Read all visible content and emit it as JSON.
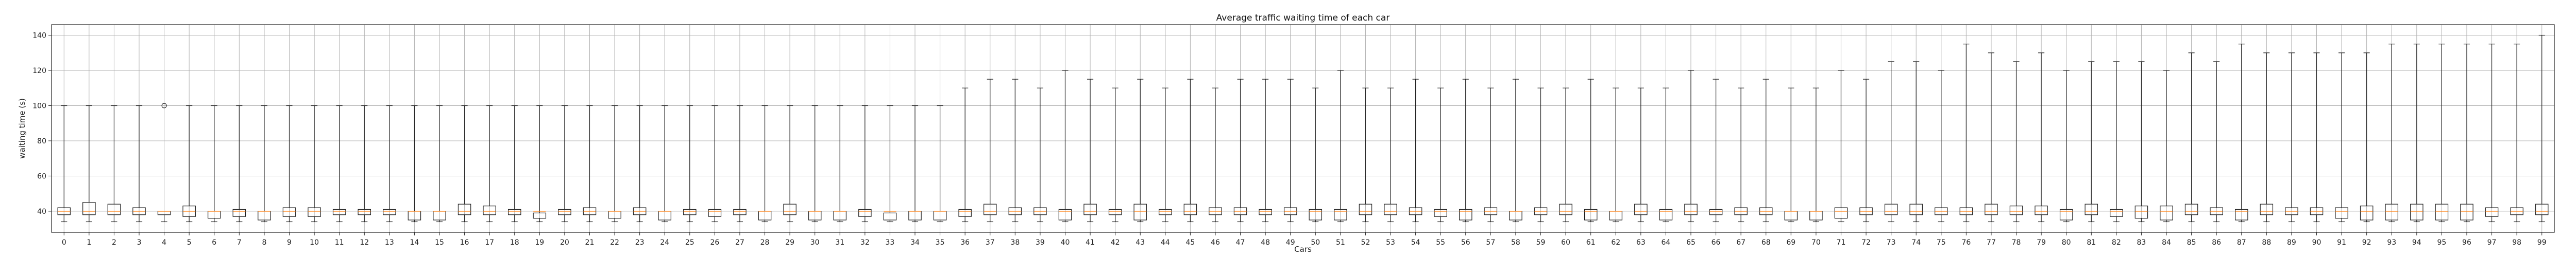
{
  "chart_data": {
    "type": "box",
    "title": "Average traffic waiting time of each car",
    "xlabel": "Cars",
    "ylabel": "waiting time (s)",
    "ylim": [
      28,
      146
    ],
    "yticks": [
      40,
      60,
      80,
      100,
      120,
      140
    ],
    "grid": true,
    "colors": {
      "box": "#1f1f1f",
      "median": "#ff7f0e",
      "grid": "#b0b0b0",
      "flier": "#1f1f1f"
    },
    "categories": [
      "0",
      "1",
      "2",
      "3",
      "4",
      "5",
      "6",
      "7",
      "8",
      "9",
      "10",
      "11",
      "12",
      "13",
      "14",
      "15",
      "16",
      "17",
      "18",
      "19",
      "20",
      "21",
      "22",
      "23",
      "24",
      "25",
      "26",
      "27",
      "28",
      "29",
      "30",
      "31",
      "32",
      "33",
      "34",
      "35",
      "36",
      "37",
      "38",
      "39",
      "40",
      "41",
      "42",
      "43",
      "44",
      "45",
      "46",
      "47",
      "48",
      "49",
      "50",
      "51",
      "52",
      "53",
      "54",
      "55",
      "56",
      "57",
      "58",
      "59",
      "60",
      "61",
      "62",
      "63",
      "64",
      "65",
      "66",
      "67",
      "68",
      "69",
      "70",
      "71",
      "72",
      "73",
      "74",
      "75",
      "76",
      "77",
      "78",
      "79",
      "80",
      "81",
      "82",
      "83",
      "84",
      "85",
      "86",
      "87",
      "88",
      "89",
      "90",
      "91",
      "92",
      "93",
      "94",
      "95",
      "96",
      "97",
      "98",
      "99"
    ],
    "whisker_high": [
      100,
      100,
      100,
      100,
      null,
      100,
      100,
      100,
      100,
      100,
      100,
      100,
      100,
      100,
      100,
      100,
      100,
      100,
      100,
      100,
      100,
      100,
      100,
      100,
      100,
      100,
      100,
      100,
      100,
      100,
      100,
      100,
      100,
      100,
      100,
      100,
      110,
      115,
      115,
      110,
      120,
      115,
      110,
      115,
      110,
      115,
      110,
      115,
      115,
      115,
      110,
      120,
      110,
      110,
      115,
      110,
      115,
      110,
      115,
      110,
      110,
      115,
      110,
      110,
      110,
      120,
      115,
      110,
      115,
      110,
      110,
      120,
      115,
      125,
      125,
      120,
      135,
      130,
      125,
      130,
      120,
      125,
      125,
      125,
      120,
      130,
      125,
      135,
      130,
      130,
      130,
      130,
      130,
      135,
      135,
      135,
      135,
      135,
      135,
      140
    ],
    "q3": [
      42,
      45,
      44,
      42,
      40,
      43,
      40,
      41,
      40,
      42,
      42,
      41,
      41,
      41,
      40,
      40,
      44,
      43,
      41,
      39,
      41,
      42,
      40,
      42,
      40,
      41,
      41,
      41,
      40,
      44,
      40,
      40,
      41,
      39,
      40,
      40,
      41,
      44,
      42,
      42,
      41,
      44,
      41,
      44,
      41,
      44,
      42,
      42,
      41,
      42,
      41,
      41,
      44,
      44,
      42,
      41,
      41,
      42,
      40,
      42,
      44,
      41,
      40,
      44,
      41,
      44,
      41,
      42,
      42,
      40,
      40,
      42,
      42,
      44,
      44,
      42,
      42,
      44,
      43,
      43,
      41,
      44,
      41,
      43,
      43,
      44,
      42,
      41,
      44,
      42,
      42,
      42,
      43,
      44,
      44,
      44,
      44,
      42,
      42,
      44
    ],
    "median": [
      40,
      40,
      40,
      40,
      40,
      40,
      40,
      40,
      40,
      40,
      40,
      40,
      40,
      40,
      40,
      40,
      40,
      40,
      40,
      40,
      40,
      40,
      40,
      40,
      40,
      40,
      40,
      40,
      40,
      40,
      40,
      40,
      40,
      40,
      40,
      40,
      40,
      40,
      40,
      40,
      40,
      40,
      40,
      40,
      40,
      40,
      40,
      40,
      40,
      40,
      40,
      40,
      40,
      40,
      40,
      40,
      40,
      40,
      40,
      40,
      40,
      40,
      40,
      40,
      40,
      40,
      40,
      40,
      40,
      40,
      40,
      40,
      40,
      40,
      40,
      40,
      40,
      40,
      40,
      40,
      40,
      40,
      40,
      40,
      40,
      40,
      40,
      40,
      40,
      40,
      40,
      40,
      40,
      40,
      40,
      40,
      40,
      40,
      40,
      40
    ],
    "q1": [
      38,
      38,
      38,
      38,
      38,
      37,
      36,
      37,
      35,
      37,
      37,
      38,
      38,
      38,
      35,
      35,
      38,
      38,
      38,
      36,
      38,
      38,
      36,
      38,
      35,
      38,
      37,
      38,
      35,
      38,
      35,
      35,
      37,
      35,
      35,
      35,
      37,
      38,
      38,
      38,
      35,
      38,
      38,
      35,
      38,
      38,
      38,
      38,
      38,
      38,
      35,
      35,
      38,
      38,
      38,
      37,
      35,
      38,
      35,
      38,
      38,
      35,
      35,
      38,
      35,
      38,
      38,
      38,
      38,
      35,
      35,
      36,
      38,
      38,
      38,
      38,
      38,
      38,
      38,
      38,
      35,
      38,
      37,
      36,
      35,
      38,
      38,
      35,
      38,
      38,
      38,
      36,
      35,
      35,
      35,
      35,
      35,
      37,
      38,
      38
    ],
    "whisker_low": [
      34,
      34,
      34,
      34,
      34,
      34,
      34,
      34,
      34,
      34,
      34,
      34,
      34,
      34,
      34,
      34,
      34,
      34,
      34,
      34,
      34,
      34,
      34,
      34,
      34,
      34,
      34,
      34,
      34,
      34,
      34,
      34,
      34,
      34,
      34,
      34,
      34,
      34,
      34,
      34,
      34,
      34,
      34,
      34,
      34,
      34,
      34,
      34,
      34,
      34,
      34,
      34,
      34,
      34,
      34,
      34,
      34,
      34,
      34,
      34,
      34,
      34,
      34,
      34,
      34,
      34,
      34,
      34,
      34,
      34,
      34,
      34,
      34,
      34,
      34,
      34,
      34,
      34,
      34,
      34,
      34,
      34,
      34,
      34,
      34,
      34,
      34,
      34,
      34,
      34,
      34,
      34,
      34,
      34,
      34,
      34,
      34,
      34,
      34,
      34
    ],
    "outliers": [
      [],
      [],
      [],
      [],
      [
        100
      ],
      [],
      [],
      [],
      [],
      [],
      [],
      [],
      [],
      [],
      [],
      [],
      [],
      [],
      [],
      [],
      [],
      [],
      [],
      [],
      [],
      [],
      [],
      [],
      [],
      [],
      [],
      [],
      [],
      [],
      [],
      [],
      [],
      [],
      [],
      [],
      [],
      [],
      [],
      [],
      [],
      [],
      [],
      [],
      [],
      [],
      [],
      [],
      [],
      [],
      [],
      [],
      [],
      [],
      [],
      [],
      [],
      [],
      [],
      [],
      [],
      [],
      [],
      [],
      [],
      [],
      [],
      [],
      [],
      [],
      [],
      [],
      [],
      [],
      [],
      [],
      [],
      [],
      [],
      [],
      [],
      [],
      [],
      [],
      [],
      [],
      [],
      [],
      [],
      [],
      [],
      [],
      [],
      [],
      [],
      []
    ]
  }
}
